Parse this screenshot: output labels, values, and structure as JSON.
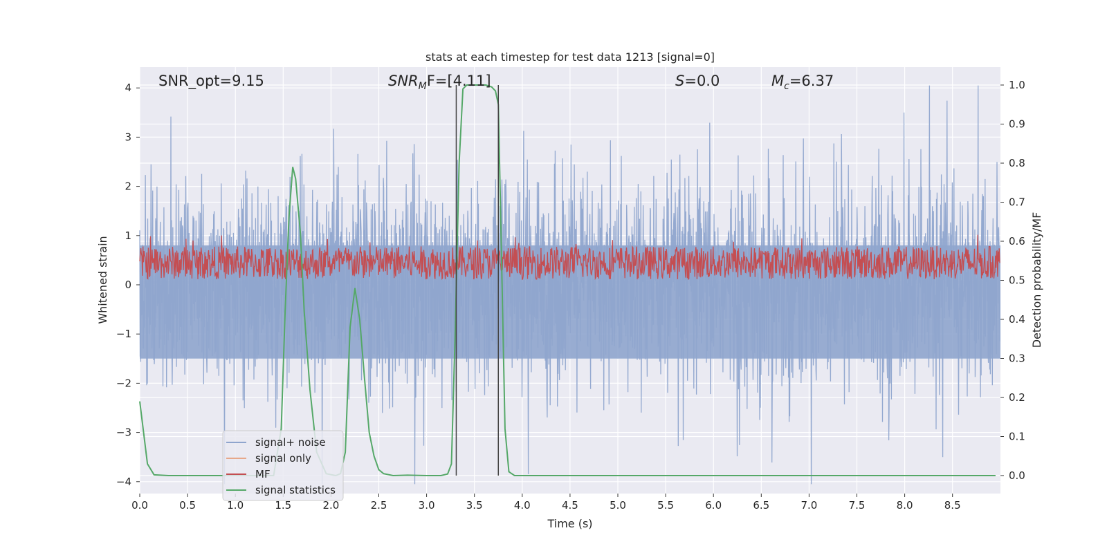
{
  "chart_data": {
    "type": "line",
    "title": "stats at each timestep for test data 1213 [signal=0]",
    "xlabel": "Time (s)",
    "ylabel": "Whitened strain",
    "y2label": "Detection probability/MF",
    "xlim": [
      0.0,
      9.0
    ],
    "ylim": [
      -4.4,
      4.4
    ],
    "y2lim": [
      -0.05,
      1.05
    ],
    "xticks": [
      "0.0",
      "0.5",
      "1.0",
      "1.5",
      "2.0",
      "2.5",
      "3.0",
      "3.5",
      "4.0",
      "4.5",
      "5.0",
      "5.5",
      "6.0",
      "6.5",
      "7.0",
      "7.5",
      "8.0",
      "8.5"
    ],
    "yticks": [
      "4",
      "3",
      "2",
      "1",
      "0",
      "−1",
      "−2",
      "−3",
      "−4"
    ],
    "y2ticks": [
      "1.0",
      "0.9",
      "0.8",
      "0.7",
      "0.6",
      "0.5",
      "0.4",
      "0.3",
      "0.2",
      "0.1",
      "0.0"
    ],
    "annotations": {
      "snr_opt": "SNR_opt=9.15",
      "snr_mf_main": "SNR",
      "snr_mf_sub": "M",
      "snr_mf_suffix": "F=[4.11]",
      "s_main": "S",
      "s_value": "=0.0",
      "mc_main": "M",
      "mc_sub": "c",
      "mc_value": "=6.37"
    },
    "vlines_x": [
      3.31,
      3.75
    ],
    "legend": {
      "position": "lower-left",
      "entries": [
        "signal+ noise",
        "signal only",
        "MF",
        "signal statistics"
      ]
    },
    "series": [
      {
        "name": "signal+ noise",
        "color": "#8fa5cd",
        "kind": "noise",
        "axis": "left",
        "approx_range": [
          -4.0,
          4.0
        ]
      },
      {
        "name": "signal only",
        "color": "#e7a88a",
        "kind": "flat",
        "axis": "left",
        "values": []
      },
      {
        "name": "MF",
        "color": "#c44e52",
        "kind": "band",
        "axis": "right",
        "approx_range": [
          0.5,
          0.6
        ]
      },
      {
        "name": "signal statistics",
        "color": "#55a868",
        "kind": "line",
        "axis": "right",
        "x": [
          0.0,
          0.08,
          0.15,
          0.3,
          0.6,
          1.0,
          1.4,
          1.48,
          1.52,
          1.56,
          1.6,
          1.63,
          1.68,
          1.72,
          1.78,
          1.85,
          1.95,
          2.05,
          2.1,
          2.15,
          2.2,
          2.25,
          2.3,
          2.35,
          2.4,
          2.45,
          2.5,
          2.55,
          2.65,
          2.8,
          3.0,
          3.15,
          3.22,
          3.26,
          3.3,
          3.34,
          3.38,
          3.42,
          3.48,
          3.55,
          3.62,
          3.68,
          3.72,
          3.75,
          3.78,
          3.82,
          3.86,
          3.92,
          4.0,
          4.5,
          5.0,
          6.0,
          7.0,
          8.0,
          8.95
        ],
        "y": [
          0.19,
          0.03,
          0.002,
          0.0,
          0.0,
          0.0,
          0.0,
          0.12,
          0.42,
          0.66,
          0.79,
          0.76,
          0.62,
          0.42,
          0.22,
          0.06,
          0.005,
          0.0,
          0.005,
          0.06,
          0.38,
          0.48,
          0.4,
          0.25,
          0.11,
          0.05,
          0.015,
          0.005,
          0.0,
          0.001,
          0.0,
          0.0,
          0.004,
          0.03,
          0.38,
          0.8,
          0.99,
          1.0,
          1.0,
          1.0,
          1.0,
          0.995,
          0.985,
          0.95,
          0.6,
          0.12,
          0.01,
          0.0,
          0.0,
          0.0,
          0.0,
          0.0,
          0.0,
          0.0,
          0.0
        ]
      }
    ]
  }
}
